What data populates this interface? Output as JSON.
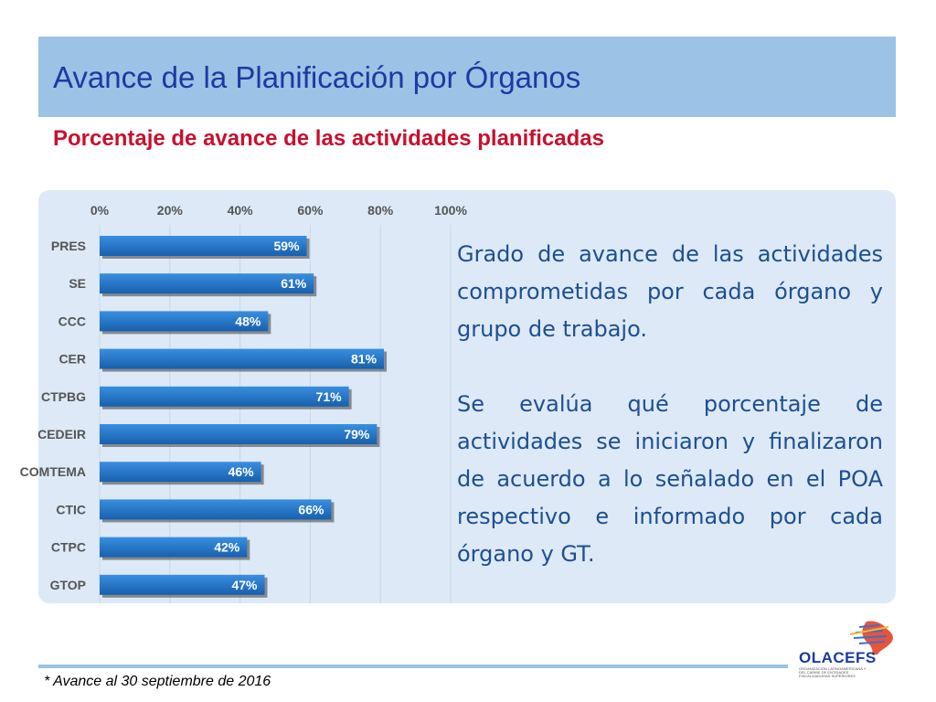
{
  "title": "Avance de la Planificación por Órganos",
  "subtitle": "Porcentaje de avance de las actividades planificadas",
  "description": [
    "Grado de avance de las actividades comprometidas por cada órgano y grupo de trabajo.",
    "Se evalúa qué porcentaje de actividades se iniciaron y finalizaron de acuerdo a lo señalado en el POA respectivo e informado por cada órgano y GT."
  ],
  "footnote": "* Avance al 30 septiembre de 2016",
  "logo": {
    "text": "OLACEFS",
    "tagline": "ORGANIZACIÓN LATINOAMERICANA Y DEL CARIBE DE ENTIDADES FISCALIZADORAS SUPERIORES"
  },
  "colors": {
    "bar": "#1c6fbf",
    "title": "#1b3aa3",
    "subtitle": "#c8102e",
    "band": "#9cc2e5"
  },
  "chart_data": {
    "type": "bar",
    "orientation": "horizontal",
    "categories": [
      "PRES",
      "SE",
      "CCC",
      "CER",
      "CTPBG",
      "CEDEIR",
      "COMTEMA",
      "CTIC",
      "CTPC",
      "GTOP"
    ],
    "values": [
      59,
      61,
      48,
      81,
      71,
      79,
      46,
      66,
      42,
      47
    ],
    "data_labels": [
      "59%",
      "61%",
      "48%",
      "81%",
      "71%",
      "79%",
      "46%",
      "66%",
      "42%",
      "47%"
    ],
    "x_ticks": [
      0,
      20,
      40,
      60,
      80,
      100
    ],
    "x_tick_labels": [
      "0%",
      "20%",
      "40%",
      "60%",
      "80%",
      "100%"
    ],
    "xlim": [
      0,
      100
    ],
    "x_axis_position": "top",
    "grid": true
  }
}
